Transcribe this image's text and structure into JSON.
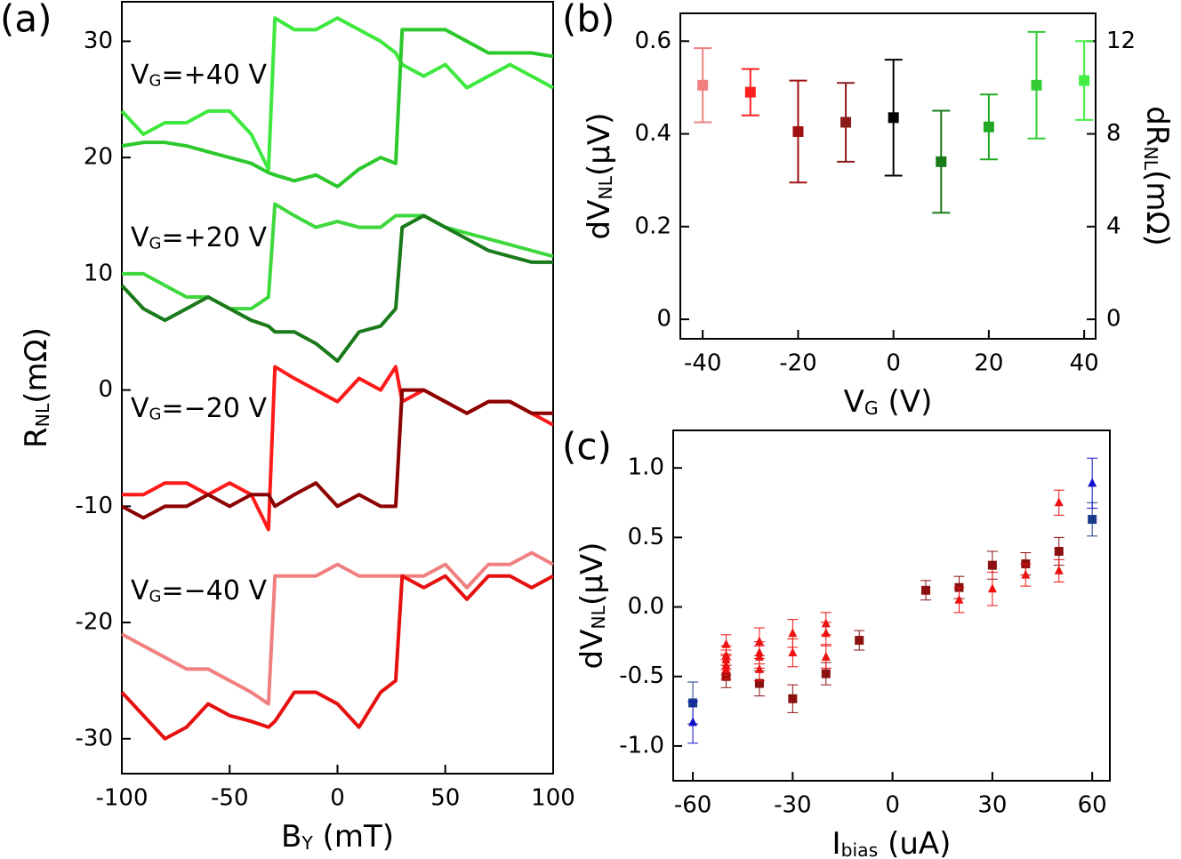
{
  "chart_data": [
    {
      "type": "line",
      "panel": "(a)",
      "xlabel": {
        "main": "B",
        "sub": "Y",
        "tail": " (mT)"
      },
      "ylabel": {
        "main": "R",
        "sub": "NL",
        "tail": "(mΩ)"
      },
      "annotations": [
        {
          "main": "V",
          "sub": "G",
          "tail": "=+40 V"
        },
        {
          "main": "V",
          "sub": "G",
          "tail": "=+20 V"
        },
        {
          "main": "V",
          "sub": "G",
          "tail": "=−20 V"
        },
        {
          "main": "V",
          "sub": "G",
          "tail": "=−40 V"
        }
      ],
      "x": [
        -100,
        -90,
        -80,
        -70,
        -60,
        -50,
        -40,
        -32,
        -29,
        -20,
        -10,
        0,
        10,
        20,
        27,
        30,
        40,
        50,
        60,
        70,
        80,
        90,
        100
      ],
      "series": [
        {
          "color": "#3ee83e",
          "values": [
            24,
            22,
            23,
            23,
            24,
            24,
            22,
            19,
            32,
            31,
            31,
            32,
            31,
            30,
            29,
            28,
            27,
            28,
            26,
            27,
            28,
            27,
            26
          ]
        },
        {
          "color": "#2cc82c",
          "values": [
            21,
            21.3,
            21.3,
            21,
            20.5,
            20,
            19.5,
            18.7,
            18.5,
            18,
            18.5,
            17.5,
            19,
            20,
            19.5,
            31,
            31,
            31,
            30,
            29,
            29,
            29,
            28.7
          ]
        },
        {
          "color": "#3ed83e",
          "values": [
            10,
            10,
            9,
            8,
            8,
            7,
            7,
            8,
            16,
            15,
            14,
            14.5,
            14,
            14,
            15,
            15,
            15,
            14,
            13.5,
            13,
            12.5,
            12,
            11.5
          ]
        },
        {
          "color": "#1a7a1a",
          "values": [
            9,
            7,
            6,
            7,
            8,
            7,
            6,
            5.5,
            5,
            5,
            4,
            2.5,
            5,
            5.5,
            7,
            14,
            15,
            14,
            13,
            12,
            11.5,
            11,
            11
          ]
        },
        {
          "color": "#ff1a1a",
          "values": [
            -9,
            -9,
            -8,
            -8,
            -9,
            -8,
            -9,
            -12,
            2,
            1,
            0,
            -1,
            1,
            0,
            2,
            -1,
            0,
            -1,
            -2,
            -1,
            -1,
            -2,
            -3
          ]
        },
        {
          "color": "#8b0000",
          "values": [
            -10,
            -11,
            -10,
            -10,
            -9,
            -10,
            -9,
            -9,
            -10,
            -9,
            -8,
            -10,
            -9,
            -10,
            -10,
            0,
            0,
            -1,
            -2,
            -1,
            -1,
            -2,
            -2
          ]
        },
        {
          "color": "#f08080",
          "values": [
            -21,
            -22,
            -23,
            -24,
            -24,
            -25,
            -26,
            -27,
            -16,
            -16,
            -16,
            -15,
            -16,
            -16,
            -16,
            -16,
            -16,
            -15,
            -17,
            -15,
            -15,
            -14,
            -15
          ]
        },
        {
          "color": "#e61010",
          "values": [
            -26,
            -28,
            -30,
            -29,
            -27,
            -28,
            -28.5,
            -29,
            -28.5,
            -26,
            -26,
            -27,
            -29,
            -26,
            -25,
            -16,
            -17,
            -16,
            -18,
            -16,
            -16,
            -17,
            -16
          ]
        }
      ],
      "xlim": [
        -100,
        100
      ],
      "xticks": [
        -100,
        -50,
        0,
        50,
        100
      ],
      "ylim": [
        -33,
        33.4
      ],
      "yticks": [
        -30,
        -20,
        -10,
        0,
        10,
        20,
        30
      ]
    },
    {
      "type": "scatter",
      "panel": "(b)",
      "xlabel": {
        "main": "V",
        "sub": "G",
        "tail": " (V)"
      },
      "ylabel": {
        "main": "dV",
        "sub": "NL",
        "tail": "(μV)"
      },
      "y2label": {
        "main": "dR",
        "sub": "NL",
        "tail": "(mΩ)"
      },
      "series": [
        {
          "marker": "square",
          "x": [
            -40,
            -30,
            -20,
            -10,
            0,
            10,
            20,
            30,
            40
          ],
          "values": [
            0.505,
            0.49,
            0.405,
            0.425,
            0.435,
            0.34,
            0.415,
            0.505,
            0.515
          ],
          "errors": [
            0.08,
            0.05,
            0.11,
            0.085,
            0.125,
            0.11,
            0.07,
            0.115,
            0.085
          ],
          "colors": [
            "#f08080",
            "#ff2020",
            "#a01010",
            "#8b1a1a",
            "#000000",
            "#1a7a1a",
            "#22aa22",
            "#33cc33",
            "#44ee44"
          ]
        }
      ],
      "xlim": [
        -44.7,
        42.4
      ],
      "xticks": [
        -40,
        -20,
        0,
        20,
        40
      ],
      "ylim": [
        -0.042,
        0.66
      ],
      "yticks": [
        0,
        0.2,
        0.4,
        0.6
      ],
      "y2lim": [
        -0.84,
        13.2
      ],
      "y2ticks": [
        0,
        4,
        8,
        12
      ]
    },
    {
      "type": "scatter",
      "panel": "(c)",
      "xlabel": {
        "main": "I",
        "sub": "bias",
        "tail": " (uA)"
      },
      "ylabel": {
        "main": "dV",
        "sub": "NL",
        "tail": "(μV)"
      },
      "series": [
        {
          "marker": "square",
          "color": "#8b1010",
          "x": [
            -50,
            -40,
            -30,
            -20,
            -10,
            10,
            20,
            30,
            40,
            50
          ],
          "values": [
            -0.5,
            -0.55,
            -0.66,
            -0.48,
            -0.24,
            0.12,
            0.14,
            0.3,
            0.31,
            0.4
          ],
          "errors": [
            0.08,
            0.09,
            0.1,
            0.08,
            0.07,
            0.07,
            0.08,
            0.1,
            0.08,
            0.1
          ]
        },
        {
          "marker": "triangle",
          "color": "#ee1111",
          "x": [
            -50,
            -50,
            -50,
            -50,
            -50,
            -40,
            -40,
            -40,
            -40,
            -30,
            -30,
            -20,
            -20,
            -20,
            20,
            30,
            40,
            50,
            50
          ],
          "values": [
            -0.27,
            -0.35,
            -0.38,
            -0.42,
            -0.45,
            -0.25,
            -0.33,
            -0.36,
            -0.45,
            -0.19,
            -0.33,
            -0.12,
            -0.19,
            -0.36,
            0.05,
            0.13,
            0.23,
            0.75,
            0.26
          ],
          "errors": [
            0.07,
            0.07,
            0.07,
            0.07,
            0.07,
            0.1,
            0.08,
            0.08,
            0.08,
            0.1,
            0.1,
            0.08,
            0.08,
            0.08,
            0.09,
            0.12,
            0.08,
            0.09,
            0.08
          ]
        },
        {
          "marker": "square",
          "color": "#1a3a8a",
          "x": [
            -60,
            60
          ],
          "values": [
            -0.69,
            0.63
          ],
          "errors": [
            0.15,
            0.12
          ]
        },
        {
          "marker": "triangle",
          "color": "#1010cc",
          "x": [
            -60,
            60
          ],
          "values": [
            -0.83,
            0.89
          ],
          "errors": [
            0.15,
            0.18
          ]
        }
      ],
      "xlim": [
        -65.9,
        65.3
      ],
      "xticks": [
        -60,
        -30,
        0,
        30,
        60
      ],
      "ylim": [
        -1.25,
        1.27
      ],
      "yticks": [
        {
          "value": -1,
          "label": "-1.0"
        },
        -0.5,
        {
          "value": 0,
          "label": "0.0"
        },
        0.5,
        {
          "value": 1,
          "label": "1.0"
        }
      ]
    }
  ]
}
